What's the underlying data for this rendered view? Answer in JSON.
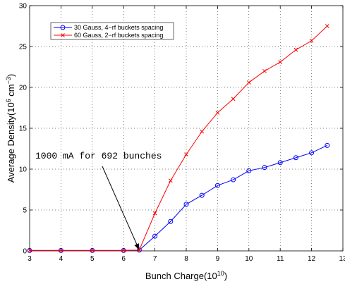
{
  "chart_data": {
    "type": "line",
    "xlabel": "Bunch Charge(10",
    "xlabel_sup": "10",
    "xlabel_end": ")",
    "ylabel": "Average Density(10",
    "ylabel_sup1": "6",
    "ylabel_mid": " cm",
    "ylabel_sup2": "−3",
    "ylabel_end": ")",
    "xlim": [
      3,
      13
    ],
    "ylim": [
      0,
      30
    ],
    "x_ticks": [
      "3",
      "4",
      "5",
      "6",
      "7",
      "8",
      "9",
      "10",
      "11",
      "12",
      "13"
    ],
    "y_ticks": [
      "0",
      "5",
      "10",
      "15",
      "20",
      "25",
      "30"
    ],
    "grid": "dotted",
    "legend_position": "top-left",
    "series": [
      {
        "name": "30 Gauss, 4−rf buckets spacing",
        "color": "#0000ff",
        "marker": "circle",
        "x": [
          3,
          4,
          5,
          6,
          6.5,
          7,
          7.5,
          8,
          8.5,
          9,
          9.5,
          10,
          10.5,
          11,
          11.5,
          12,
          12.5
        ],
        "y": [
          0.05,
          0.05,
          0.05,
          0.05,
          0.1,
          1.8,
          3.6,
          5.7,
          6.8,
          8.0,
          8.7,
          9.8,
          10.2,
          10.8,
          11.4,
          12.0,
          12.9
        ]
      },
      {
        "name": "60 Gauss, 2−rf buckets spacing",
        "color": "#ff0000",
        "marker": "x",
        "x": [
          3,
          4,
          5,
          6,
          6.5,
          7,
          7.5,
          8,
          8.5,
          9,
          9.5,
          10,
          10.5,
          11,
          11.5,
          12,
          12.5
        ],
        "y": [
          0.05,
          0.05,
          0.05,
          0.05,
          0.1,
          4.6,
          8.6,
          11.8,
          14.6,
          16.9,
          18.6,
          20.6,
          22.0,
          23.1,
          24.6,
          25.7,
          27.5
        ]
      }
    ],
    "annotation": {
      "text": "1000 mA for 692 bunches",
      "arrow_to": [
        6.5,
        0.1
      ]
    }
  }
}
